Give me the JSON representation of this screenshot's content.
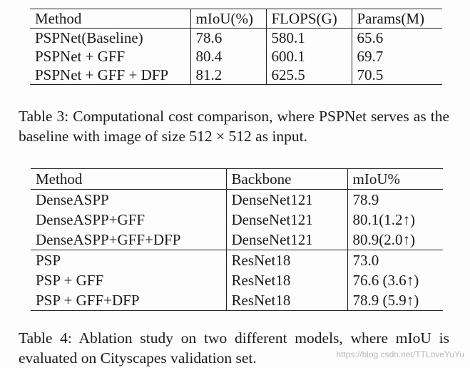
{
  "table3": {
    "headers": [
      "Method",
      "mIoU(%)",
      "FLOPS(G)",
      "Params(M)"
    ],
    "rows": [
      [
        "PSPNet(Baseline)",
        "78.6",
        "580.1",
        "65.6"
      ],
      [
        "PSPNet + GFF",
        "80.4",
        "600.1",
        "69.7"
      ],
      [
        "PSPNet + GFF + DFP",
        "81.2",
        "625.5",
        "70.5"
      ]
    ],
    "caption": "Table 3: Computational cost comparison, where PSPNet serves as the baseline with image of size 512 × 512 as input."
  },
  "table4": {
    "headers": [
      "Method",
      "Backbone",
      "mIoU%"
    ],
    "rows": [
      [
        "DenseASPP",
        "DenseNet121",
        "78.9"
      ],
      [
        "DenseASPP+GFF",
        "DenseNet121",
        "80.1(1.2↑)"
      ],
      [
        "DenseASPP+GFF+DFP",
        "DenseNet121",
        "80.9(2.0↑)"
      ],
      [
        "PSP",
        "ResNet18",
        "73.0"
      ],
      [
        "PSP + GFF",
        "ResNet18",
        "76.6 (3.6↑)"
      ],
      [
        "PSP + GFF+DFP",
        "ResNet18",
        "78.9 (5.9↑)"
      ]
    ],
    "caption": "Table 4: Ablation study on two different models, where mIoU is evaluated on Cityscapes validation set."
  },
  "watermark": "https://blog.csdn.net/TTLoveYuYu"
}
